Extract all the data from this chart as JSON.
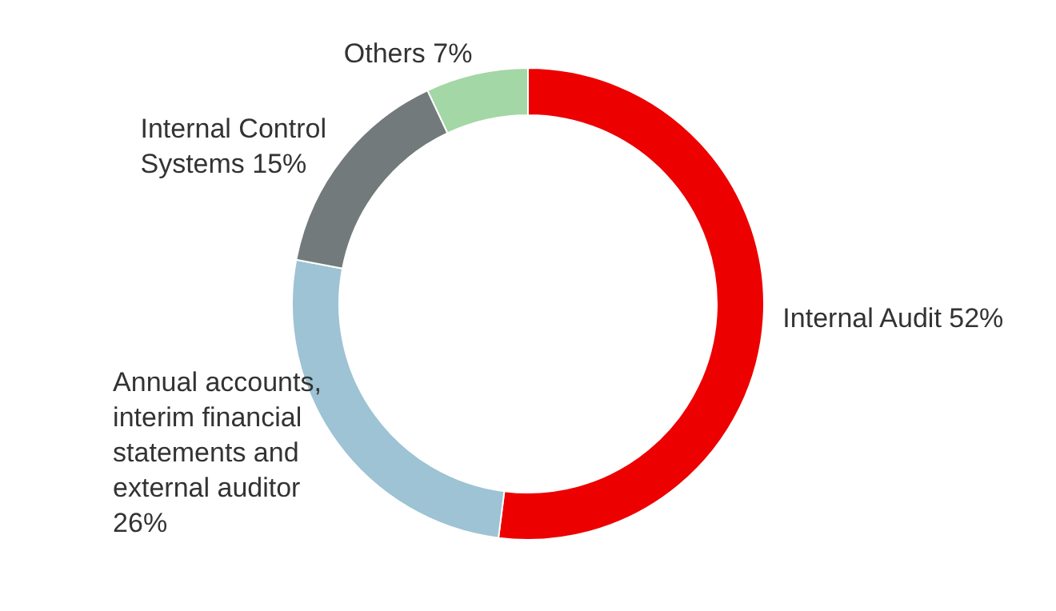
{
  "chart_data": {
    "type": "donut",
    "categories": [
      "Internal Audit",
      "Annual accounts, interim financial statements and external auditor",
      "Internal Control Systems",
      "Others"
    ],
    "values": [
      52,
      26,
      15,
      7
    ],
    "colors": [
      "#ec0000",
      "#9dc3d4",
      "#737a7b",
      "#a3d7a5"
    ],
    "value_labels": [
      "52%",
      "26%",
      "15%",
      "7%"
    ],
    "legend": false
  }
}
